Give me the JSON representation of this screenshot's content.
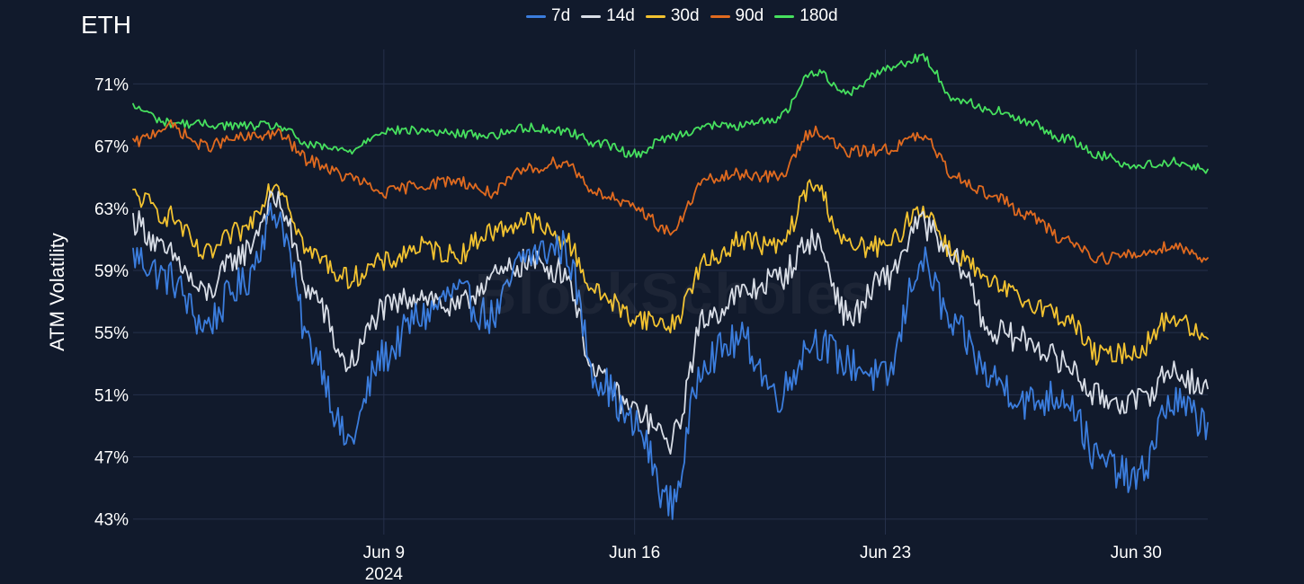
{
  "title": "ETH",
  "watermark": "BlockScholes",
  "colors": {
    "background": "#111a2c",
    "grid": "#25304a",
    "axis_text": "#ffffff"
  },
  "chart_data": {
    "type": "line",
    "title": "ETH",
    "ylabel": "ATM Volatility",
    "xlabel": "",
    "ylim": [
      0.42,
      0.738
    ],
    "xlim": [
      "2024-06-02",
      "2024-07-02T00:00"
    ],
    "ytick_values": [
      0.43,
      0.47,
      0.51,
      0.55,
      0.59,
      0.63,
      0.67,
      0.71
    ],
    "ytick_labels": [
      "43%",
      "47%",
      "51%",
      "55%",
      "59%",
      "63%",
      "67%",
      "71%"
    ],
    "xticks": [
      {
        "x": "2024-06-09",
        "label": "Jun 9",
        "sublabel": "2024"
      },
      {
        "x": "2024-06-16",
        "label": "Jun 16",
        "sublabel": ""
      },
      {
        "x": "2024-06-23",
        "label": "Jun 23",
        "sublabel": ""
      },
      {
        "x": "2024-06-30",
        "label": "Jun 30",
        "sublabel": ""
      }
    ],
    "grid": true,
    "legend_position": "top-center",
    "x": [
      "2024-06-02",
      "2024-06-03",
      "2024-06-04",
      "2024-06-05",
      "2024-06-06",
      "2024-06-07",
      "2024-06-08",
      "2024-06-09",
      "2024-06-10",
      "2024-06-11",
      "2024-06-12",
      "2024-06-13",
      "2024-06-14",
      "2024-06-15",
      "2024-06-16",
      "2024-06-17",
      "2024-06-18",
      "2024-06-19",
      "2024-06-20",
      "2024-06-21",
      "2024-06-22",
      "2024-06-23",
      "2024-06-24",
      "2024-06-25",
      "2024-06-26",
      "2024-06-27",
      "2024-06-28",
      "2024-06-29",
      "2024-06-30",
      "2024-07-01",
      "2024-07-02"
    ],
    "series": [
      {
        "name": "7d",
        "color": "#3b7ddd",
        "values": [
          0.599,
          0.585,
          0.555,
          0.58,
          0.627,
          0.54,
          0.48,
          0.535,
          0.56,
          0.575,
          0.56,
          0.6,
          0.605,
          0.52,
          0.49,
          0.44,
          0.535,
          0.545,
          0.51,
          0.545,
          0.53,
          0.52,
          0.595,
          0.55,
          0.52,
          0.505,
          0.51,
          0.467,
          0.455,
          0.505,
          0.492
        ]
      },
      {
        "name": "14d",
        "color": "#d8dde6",
        "values": [
          0.622,
          0.6,
          0.575,
          0.6,
          0.635,
          0.575,
          0.53,
          0.565,
          0.575,
          0.565,
          0.585,
          0.595,
          0.59,
          0.52,
          0.5,
          0.48,
          0.56,
          0.575,
          0.585,
          0.61,
          0.56,
          0.585,
          0.62,
          0.595,
          0.55,
          0.545,
          0.53,
          0.508,
          0.505,
          0.525,
          0.514
        ]
      },
      {
        "name": "30d",
        "color": "#f2c230",
        "values": [
          0.638,
          0.625,
          0.6,
          0.615,
          0.646,
          0.6,
          0.585,
          0.595,
          0.605,
          0.6,
          0.615,
          0.622,
          0.61,
          0.575,
          0.56,
          0.555,
          0.595,
          0.61,
          0.605,
          0.645,
          0.605,
          0.605,
          0.63,
          0.6,
          0.58,
          0.57,
          0.56,
          0.535,
          0.538,
          0.56,
          0.546
        ]
      },
      {
        "name": "90d",
        "color": "#e06a1f",
        "values": [
          0.672,
          0.683,
          0.67,
          0.675,
          0.678,
          0.66,
          0.65,
          0.64,
          0.645,
          0.648,
          0.64,
          0.655,
          0.66,
          0.64,
          0.63,
          0.615,
          0.648,
          0.652,
          0.65,
          0.68,
          0.666,
          0.668,
          0.676,
          0.65,
          0.638,
          0.625,
          0.61,
          0.598,
          0.6,
          0.606,
          0.598
        ]
      },
      {
        "name": "180d",
        "color": "#46e05e",
        "values": [
          0.695,
          0.685,
          0.684,
          0.683,
          0.683,
          0.67,
          0.667,
          0.68,
          0.68,
          0.678,
          0.677,
          0.682,
          0.68,
          0.672,
          0.665,
          0.676,
          0.683,
          0.683,
          0.688,
          0.718,
          0.705,
          0.72,
          0.727,
          0.7,
          0.693,
          0.685,
          0.675,
          0.664,
          0.657,
          0.66,
          0.655
        ]
      }
    ]
  }
}
